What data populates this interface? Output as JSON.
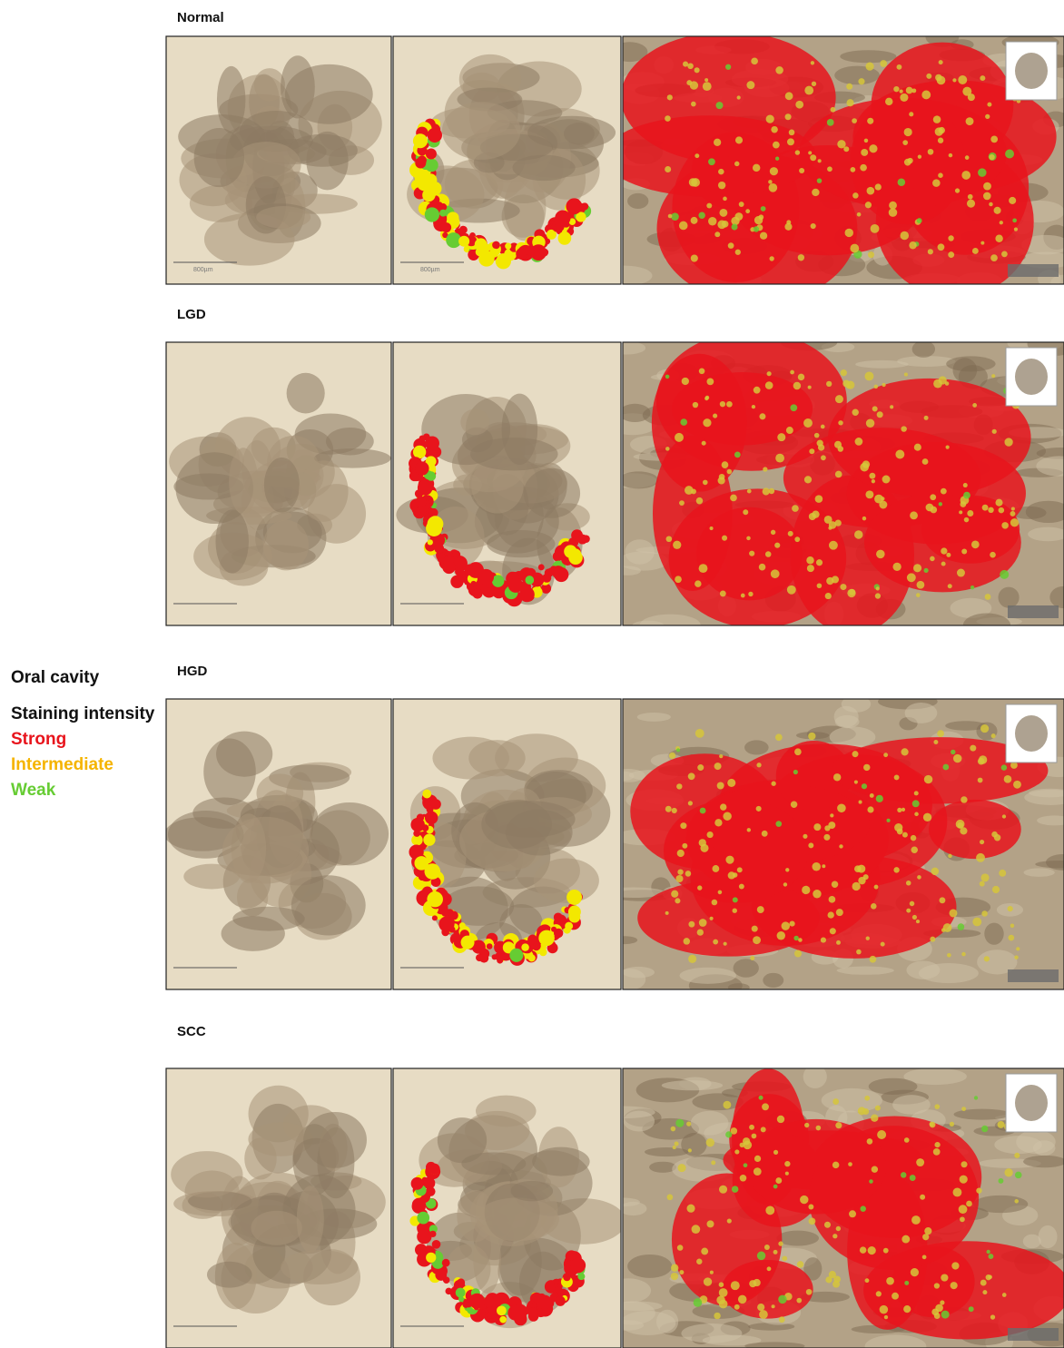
{
  "figure": {
    "side_label": {
      "title": "Oral cavity",
      "subtitle": "Staining intensity",
      "items": [
        {
          "label": "Strong",
          "color": "#e8141c"
        },
        {
          "label": "Intermediate",
          "color": "#f5b400"
        },
        {
          "label": "Weak",
          "color": "#66cc33"
        }
      ]
    },
    "rows": [
      {
        "label": "Normal",
        "scale_bars": [
          "800µm",
          "800µm"
        ]
      },
      {
        "label": "LGD"
      },
      {
        "label": "HGD"
      },
      {
        "label": "SCC"
      }
    ]
  }
}
